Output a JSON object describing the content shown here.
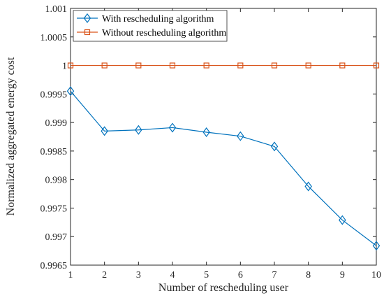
{
  "chart_data": {
    "type": "line",
    "title": "",
    "xlabel": "Number of rescheduling user",
    "ylabel": "Normalized aggregated energy cost",
    "xlim": [
      1,
      10
    ],
    "ylim": [
      0.9965,
      1.001
    ],
    "x_ticks": [
      "1",
      "2",
      "3",
      "4",
      "5",
      "6",
      "7",
      "8",
      "9",
      "10"
    ],
    "y_ticks": [
      "0.9965",
      "0.997",
      "0.9975",
      "0.998",
      "0.9985",
      "0.999",
      "0.9995",
      "1",
      "1.0005",
      "1.001"
    ],
    "grid": false,
    "legend_position": "top-left",
    "x": [
      1,
      2,
      3,
      4,
      5,
      6,
      7,
      8,
      9,
      10
    ],
    "series": [
      {
        "name": "With rescheduling algorithm",
        "marker": "diamond",
        "color": "#0072BD",
        "values": [
          0.99955,
          0.99885,
          0.99887,
          0.99891,
          0.99883,
          0.99876,
          0.99858,
          0.99788,
          0.99729,
          0.99684
        ]
      },
      {
        "name": "Without rescheduling algorithm",
        "marker": "square",
        "color": "#D95319",
        "values": [
          1,
          1,
          1,
          1,
          1,
          1,
          1,
          1,
          1,
          1
        ]
      }
    ]
  }
}
